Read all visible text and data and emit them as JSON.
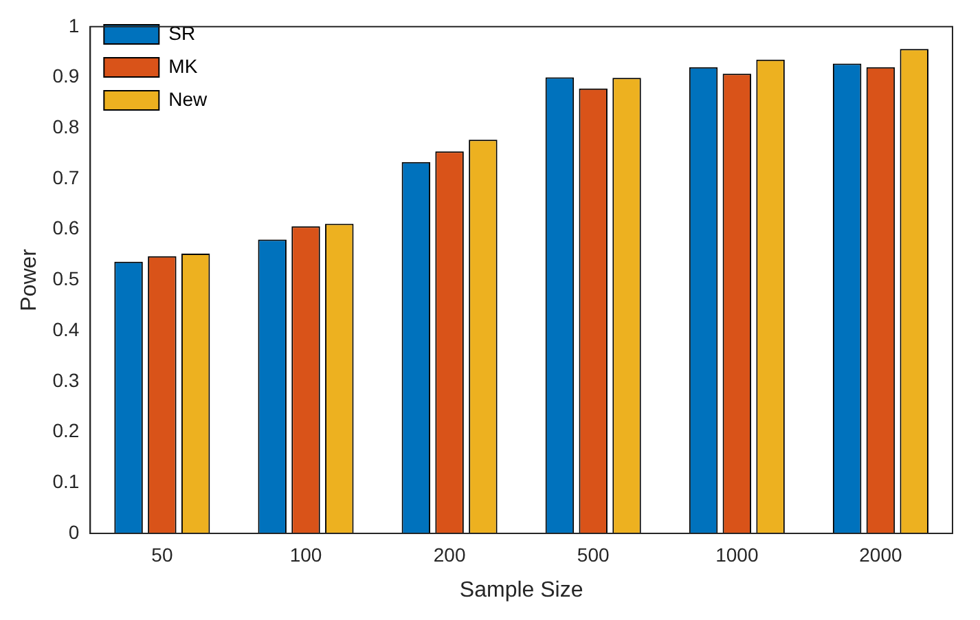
{
  "chart_data": {
    "type": "bar",
    "xlabel": "Sample Size",
    "ylabel": "Power",
    "categories": [
      "50",
      "100",
      "200",
      "500",
      "1000",
      "2000"
    ],
    "series": [
      {
        "name": "SR",
        "color": "#0072bd",
        "values": [
          0.536,
          0.58,
          0.733,
          0.9,
          0.92,
          0.927
        ]
      },
      {
        "name": "MK",
        "color": "#d95319",
        "values": [
          0.547,
          0.606,
          0.754,
          0.878,
          0.907,
          0.92
        ]
      },
      {
        "name": "New",
        "color": "#edb120",
        "values": [
          0.552,
          0.611,
          0.777,
          0.899,
          0.935,
          0.956
        ]
      }
    ],
    "ylim": [
      0,
      1
    ],
    "yticks": [
      0,
      0.1,
      0.2,
      0.3,
      0.4,
      0.5,
      0.6,
      0.7,
      0.8,
      0.9,
      1
    ],
    "grid": false,
    "legend": "top left"
  }
}
